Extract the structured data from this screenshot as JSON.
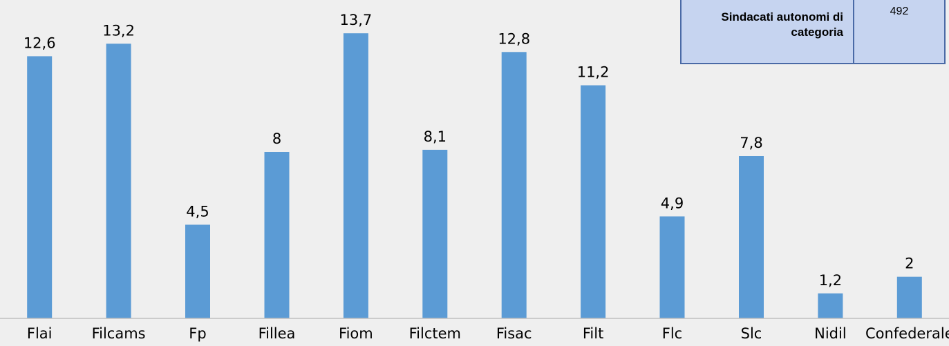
{
  "chart_data": {
    "type": "bar",
    "categories": [
      "Flai",
      "Filcams",
      "Fp",
      "Fillea",
      "Fiom",
      "Filctem",
      "Fisac",
      "Filt",
      "Flc",
      "Slc",
      "Nidil",
      "Confederale"
    ],
    "values": [
      12.6,
      13.2,
      4.5,
      8,
      13.7,
      8.1,
      12.8,
      11.2,
      4.9,
      7.8,
      1.2,
      2
    ],
    "value_labels": [
      "12,6",
      "13,2",
      "4,5",
      "8",
      "13,7",
      "8,1",
      "12,8",
      "11,2",
      "4,9",
      "7,8",
      "1,2",
      "2"
    ],
    "title": "",
    "xlabel": "",
    "ylabel": "",
    "ylim": [
      0,
      15.3
    ],
    "grid": false,
    "bar_color": "#5b9bd5"
  },
  "overlay_table": {
    "label": "Sindacati autonomi di categoria",
    "value": "492",
    "bg_color": "#c6d4f0",
    "border_color": "#4a6aa6"
  }
}
